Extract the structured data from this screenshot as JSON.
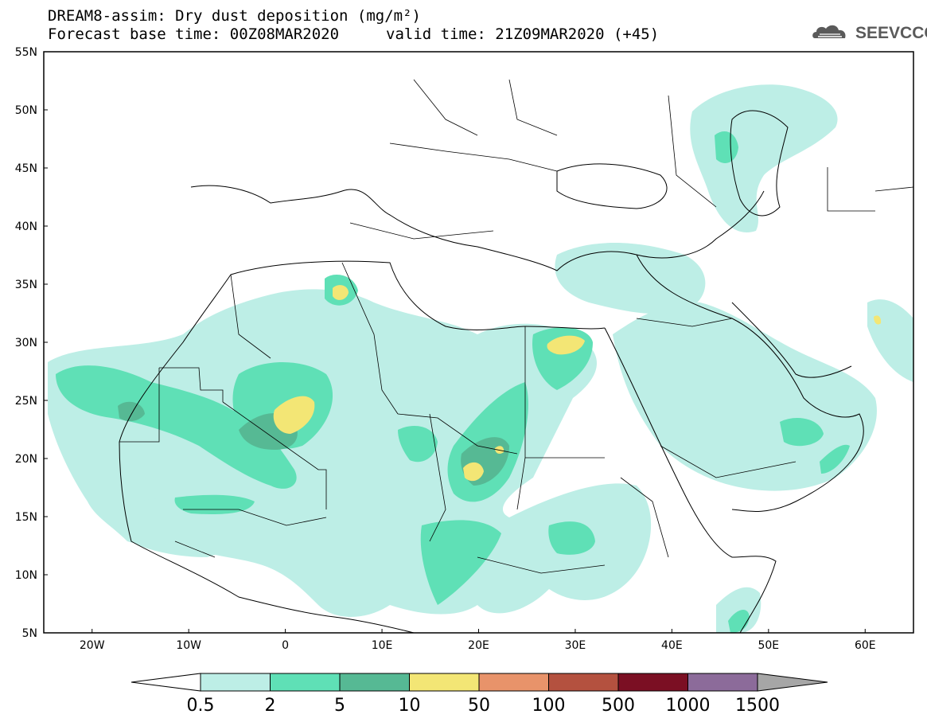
{
  "title": {
    "line1": "DREAM8-assim: Dry dust deposition (mg/m²)",
    "line2a": "Forecast base time: 00Z08MAR2020",
    "line2b": "valid time: 21Z09MAR2020 (+45)"
  },
  "logo": {
    "text": "SEEVCCC",
    "icon": "cloud-logo-icon"
  },
  "map": {
    "lon_range": [
      -25,
      65
    ],
    "lat_range": [
      5,
      55
    ],
    "lat_ticks": [
      "5N",
      "10N",
      "15N",
      "20N",
      "25N",
      "30N",
      "35N",
      "40N",
      "45N",
      "50N",
      "55N"
    ],
    "lon_ticks": [
      "20W",
      "10W",
      "0",
      "10E",
      "20E",
      "30E",
      "40E",
      "50E",
      "60E"
    ]
  },
  "colorbar": {
    "levels": [
      "0.5",
      "2",
      "5",
      "10",
      "50",
      "100",
      "500",
      "1000",
      "1500"
    ],
    "colors": [
      "#bdeee6",
      "#5fe0b6",
      "#56b994",
      "#f3e675",
      "#e8936a",
      "#b4513f",
      "#7b0f23",
      "#8c6b9a",
      "#a6a6a6"
    ],
    "under_color": "#ffffff"
  }
}
